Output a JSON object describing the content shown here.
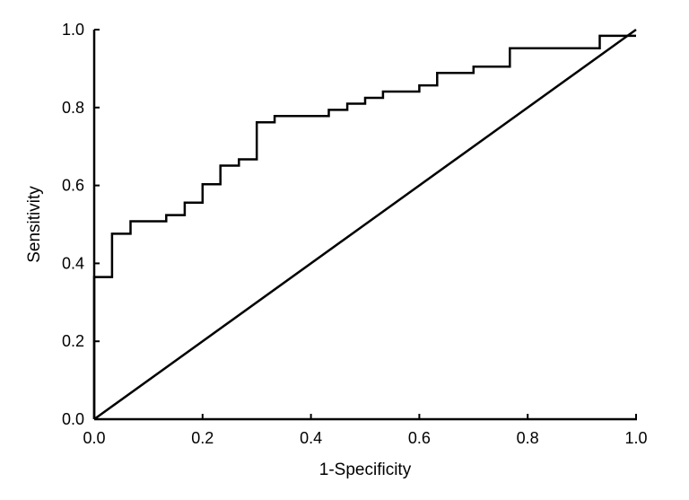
{
  "chart_data": {
    "type": "line",
    "title": "",
    "xlabel": "1-Specificity",
    "ylabel": "Sensitivity",
    "xlim": [
      0.0,
      1.0
    ],
    "ylim": [
      0.0,
      1.0
    ],
    "grid": false,
    "legend": "none",
    "x_ticks": [
      "0.0",
      "0.2",
      "0.4",
      "0.6",
      "0.8",
      "1.0"
    ],
    "y_ticks": [
      "0.0",
      "0.2",
      "0.4",
      "0.6",
      "0.8",
      "1.0"
    ],
    "series": [
      {
        "style": "step",
        "color": "#000000",
        "x": [
          0.0,
          0.0,
          0.033,
          0.033,
          0.067,
          0.067,
          0.133,
          0.133,
          0.167,
          0.167,
          0.2,
          0.2,
          0.233,
          0.233,
          0.267,
          0.267,
          0.3,
          0.3,
          0.333,
          0.333,
          0.433,
          0.433,
          0.467,
          0.467,
          0.5,
          0.5,
          0.533,
          0.533,
          0.6,
          0.6,
          0.633,
          0.633,
          0.7,
          0.7,
          0.767,
          0.767,
          0.933,
          0.933,
          1.0
        ],
        "y": [
          0.0,
          0.365,
          0.365,
          0.476,
          0.476,
          0.508,
          0.508,
          0.524,
          0.524,
          0.556,
          0.556,
          0.603,
          0.603,
          0.651,
          0.651,
          0.667,
          0.667,
          0.762,
          0.762,
          0.778,
          0.778,
          0.794,
          0.794,
          0.81,
          0.81,
          0.825,
          0.825,
          0.841,
          0.841,
          0.857,
          0.857,
          0.889,
          0.889,
          0.905,
          0.905,
          0.952,
          0.952,
          0.984,
          0.984
        ]
      },
      {
        "style": "reference",
        "color": "#000000",
        "x": [
          0.0,
          1.0
        ],
        "y": [
          0.0,
          1.0
        ]
      }
    ]
  }
}
